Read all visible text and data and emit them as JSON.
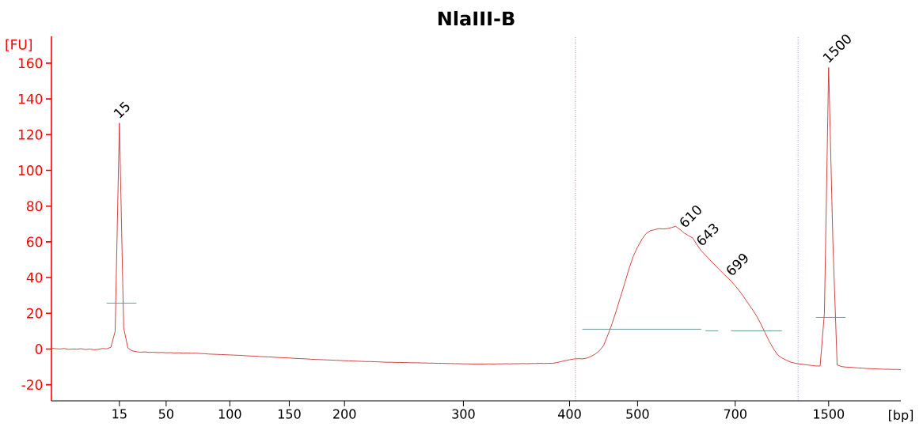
{
  "chart_data": {
    "type": "line",
    "title": "NlaIII-B",
    "xlabel": "[bp]",
    "ylabel": "[FU]",
    "ylim": [
      -29,
      175
    ],
    "yticks": [
      -20,
      0,
      20,
      40,
      60,
      80,
      100,
      120,
      140,
      160
    ],
    "grid": false,
    "marker": "none",
    "categories": [
      null,
      null,
      null,
      null,
      null,
      null,
      null,
      null,
      null,
      null,
      null,
      null,
      null,
      null,
      null,
      null,
      "15",
      null,
      null,
      null,
      null,
      null,
      null,
      null,
      null,
      null,
      null,
      "50",
      null,
      null,
      null,
      null,
      null,
      null,
      null,
      null,
      null,
      null,
      null,
      null,
      null,
      null,
      "100",
      null,
      null,
      null,
      null,
      null,
      null,
      null,
      null,
      null,
      null,
      null,
      null,
      null,
      "150",
      null,
      null,
      null,
      null,
      null,
      null,
      null,
      null,
      null,
      null,
      null,
      null,
      "200",
      null,
      null,
      null,
      null,
      null,
      null,
      null,
      null,
      null,
      null,
      null,
      null,
      null,
      null,
      null,
      null,
      null,
      null,
      null,
      null,
      null,
      null,
      null,
      null,
      null,
      null,
      null,
      "300",
      null,
      null,
      null,
      null,
      null,
      null,
      null,
      null,
      null,
      null,
      null,
      null,
      null,
      null,
      null,
      null,
      null,
      null,
      null,
      null,
      null,
      null,
      null,
      null,
      "400",
      null,
      null,
      null,
      null,
      null,
      null,
      null,
      null,
      null,
      null,
      null,
      null,
      null,
      null,
      null,
      "500",
      null,
      null,
      null,
      null,
      null,
      null,
      null,
      null,
      null,
      null,
      null,
      null,
      null,
      null,
      null,
      null,
      null,
      null,
      null,
      null,
      null,
      null,
      "700",
      null,
      null,
      null,
      null,
      null,
      null,
      null,
      null,
      null,
      null,
      null,
      null,
      null,
      null,
      null,
      null,
      null,
      null,
      null,
      null,
      null,
      "1500",
      null,
      null,
      null,
      null,
      null,
      null,
      null,
      null,
      null,
      null,
      null,
      null,
      null,
      null,
      null,
      null,
      null
    ],
    "series": [
      {
        "color": "#d03030",
        "line_style": "solid",
        "values": [
          0.4,
          0.2,
          0.0,
          0.3,
          -0.2,
          0.0,
          -0.1,
          0.2,
          -0.3,
          0.0,
          -0.4,
          -0.2,
          0.3,
          0.1,
          1.0,
          10,
          126.5,
          12,
          0.5,
          -1.0,
          -1.5,
          -1.8,
          -1.6,
          -1.9,
          -1.8,
          -2.0,
          -1.9,
          -2.1,
          -2.0,
          -2.2,
          -2.1,
          -2.3,
          -2.2,
          -2.4,
          -2.3,
          -2.5,
          -2.6,
          -2.8,
          -2.9,
          -3.0,
          -3.1,
          -3.2,
          -3.3,
          -3.4,
          -3.5,
          -3.6,
          -3.8,
          -3.9,
          -4.0,
          -4.2,
          -4.3,
          -4.4,
          -4.5,
          -4.7,
          -4.8,
          -4.9,
          -5.0,
          -5.2,
          -5.3,
          -5.4,
          -5.5,
          -5.7,
          -5.8,
          -5.9,
          -6.0,
          -6.1,
          -6.2,
          -6.3,
          -6.4,
          -6.5,
          -6.6,
          -6.7,
          -6.8,
          -6.9,
          -7.0,
          -7.0,
          -7.1,
          -7.2,
          -7.3,
          -7.4,
          -7.4,
          -7.5,
          -7.5,
          -7.6,
          -7.6,
          -7.7,
          -7.7,
          -7.8,
          -7.8,
          -7.9,
          -7.9,
          -8.0,
          -8.0,
          -8.1,
          -8.1,
          -8.2,
          -8.2,
          -8.3,
          -8.3,
          -8.4,
          -8.4,
          -8.4,
          -8.4,
          -8.3,
          -8.4,
          -8.3,
          -8.3,
          -8.2,
          -8.3,
          -8.2,
          -8.2,
          -8.1,
          -8.2,
          -8.1,
          -8.1,
          -8.0,
          -8.1,
          -8.0,
          -8.0,
          -7.6,
          -7.0,
          -6.5,
          -6.0,
          -5.6,
          -5.4,
          -5.5,
          -5.1,
          -4.2,
          -2.9,
          -1.0,
          1.9,
          7.8,
          14.2,
          21.5,
          29.2,
          37.0,
          45.0,
          51.9,
          57.0,
          61.3,
          64.6,
          66.2,
          66.8,
          67.4,
          67.2,
          67.4,
          68.0,
          68.7,
          66.9,
          64.9,
          63.5,
          62.1,
          58.4,
          55.0,
          52.5,
          50.0,
          47.6,
          45.1,
          42.7,
          40.4,
          38.1,
          35.4,
          32.5,
          29.2,
          25.7,
          22.3,
          18.6,
          14.2,
          9.3,
          4.4,
          0.2,
          -3.3,
          -5.0,
          -6.2,
          -7.3,
          -7.9,
          -8.3,
          -8.6,
          -8.9,
          -9.2,
          -9.5,
          -9.5,
          20,
          157.6,
          60,
          -8.9,
          -9.8,
          -10.1,
          -10.2,
          -10.4,
          -10.6,
          -10.7,
          -10.9,
          -11.0,
          -11.1,
          -11.2,
          -11.3,
          -11.3,
          -11.4,
          -11.4,
          -11.5
        ]
      },
      {
        "color": "#5b8f8f",
        "line_style": "solid",
        "values": [
          null,
          null,
          null,
          null,
          null,
          null,
          null,
          null,
          null,
          null,
          null,
          null,
          null,
          25.7,
          null,
          null,
          null,
          null,
          null,
          null,
          25.7,
          null,
          null,
          null,
          null,
          null,
          null,
          null,
          null,
          null,
          null,
          null,
          null,
          null,
          null,
          null,
          null,
          null,
          null,
          null,
          null,
          null,
          null,
          null,
          null,
          null,
          null,
          null,
          null,
          null,
          null,
          null,
          null,
          null,
          null,
          null,
          null,
          null,
          null,
          null,
          null,
          null,
          null,
          null,
          null,
          null,
          null,
          null,
          null,
          null,
          null,
          null,
          null,
          null,
          null,
          null,
          null,
          null,
          null,
          null,
          null,
          null,
          null,
          null,
          null,
          null,
          null,
          null,
          null,
          null,
          null,
          null,
          null,
          null,
          null,
          null,
          null,
          null,
          null,
          null,
          null,
          null,
          null,
          null,
          null,
          null,
          null,
          null,
          null,
          null,
          null,
          null,
          null,
          null,
          null,
          null,
          null,
          null,
          null,
          null,
          null,
          null,
          null,
          null,
          null,
          null,
          null,
          null,
          null,
          null,
          null,
          null,
          null,
          null,
          null,
          null,
          null,
          null,
          null,
          null,
          null,
          null,
          null,
          null,
          null,
          null,
          null,
          null,
          null,
          null,
          null,
          null,
          null,
          null,
          null,
          null,
          null,
          null,
          null,
          null,
          null,
          null,
          null,
          null,
          null,
          null,
          null,
          null,
          null,
          null,
          null,
          null,
          null,
          null,
          null,
          null,
          null,
          null,
          null,
          null,
          null,
          null,
          null,
          null,
          null,
          null,
          null,
          null,
          null,
          null,
          null,
          null,
          null,
          null,
          null,
          null,
          null,
          null,
          null,
          null,
          null
        ]
      },
      {
        "color": "#5b8f8f",
        "line_style": "solid",
        "values": [
          null,
          null,
          null,
          null,
          null,
          null,
          null,
          null,
          null,
          null,
          null,
          null,
          null,
          null,
          null,
          null,
          null,
          null,
          null,
          null,
          null,
          null,
          null,
          null,
          null,
          null,
          null,
          null,
          null,
          null,
          null,
          null,
          null,
          null,
          null,
          null,
          null,
          null,
          null,
          null,
          null,
          null,
          null,
          null,
          null,
          null,
          null,
          null,
          null,
          null,
          null,
          null,
          null,
          null,
          null,
          null,
          null,
          null,
          null,
          null,
          null,
          null,
          null,
          null,
          null,
          null,
          null,
          null,
          null,
          null,
          null,
          null,
          null,
          null,
          null,
          null,
          null,
          null,
          null,
          null,
          null,
          null,
          null,
          null,
          null,
          null,
          null,
          null,
          null,
          null,
          null,
          null,
          null,
          null,
          null,
          null,
          null,
          null,
          null,
          null,
          null,
          null,
          null,
          null,
          null,
          null,
          null,
          null,
          null,
          null,
          null,
          null,
          null,
          null,
          null,
          null,
          null,
          null,
          null,
          null,
          null,
          null,
          null,
          null,
          null,
          11.1,
          null,
          null,
          null,
          null,
          null,
          null,
          null,
          null,
          null,
          null,
          null,
          null,
          null,
          null,
          null,
          null,
          null,
          null,
          null,
          null,
          null,
          null,
          null,
          null,
          null,
          null,
          null,
          11.1,
          null,
          null,
          null,
          null,
          null,
          null,
          null,
          null,
          null,
          null,
          null,
          null,
          null,
          null,
          null,
          null,
          null,
          null,
          null,
          null,
          null,
          null,
          null,
          null,
          null,
          null,
          null,
          null,
          null,
          null,
          null,
          null,
          null,
          null,
          null,
          null,
          null,
          null,
          null,
          null,
          null,
          null,
          null,
          null,
          null,
          null,
          null
        ]
      },
      {
        "color": "#5b8f8f",
        "line_style": "solid",
        "values": [
          null,
          null,
          null,
          null,
          null,
          null,
          null,
          null,
          null,
          null,
          null,
          null,
          null,
          null,
          null,
          null,
          null,
          null,
          null,
          null,
          null,
          null,
          null,
          null,
          null,
          null,
          null,
          null,
          null,
          null,
          null,
          null,
          null,
          null,
          null,
          null,
          null,
          null,
          null,
          null,
          null,
          null,
          null,
          null,
          null,
          null,
          null,
          null,
          null,
          null,
          null,
          null,
          null,
          null,
          null,
          null,
          null,
          null,
          null,
          null,
          null,
          null,
          null,
          null,
          null,
          null,
          null,
          null,
          null,
          null,
          null,
          null,
          null,
          null,
          null,
          null,
          null,
          null,
          null,
          null,
          null,
          null,
          null,
          null,
          null,
          null,
          null,
          null,
          null,
          null,
          null,
          null,
          null,
          null,
          null,
          null,
          null,
          null,
          null,
          null,
          null,
          null,
          null,
          null,
          null,
          null,
          null,
          null,
          null,
          null,
          null,
          null,
          null,
          null,
          null,
          null,
          null,
          null,
          null,
          null,
          null,
          null,
          null,
          null,
          null,
          null,
          null,
          null,
          null,
          null,
          null,
          null,
          null,
          null,
          null,
          null,
          null,
          null,
          null,
          null,
          null,
          null,
          null,
          null,
          null,
          null,
          null,
          null,
          null,
          null,
          null,
          null,
          null,
          null,
          10.2,
          null,
          null,
          10.2,
          null,
          null,
          null,
          null,
          null,
          null,
          null,
          null,
          null,
          null,
          null,
          null,
          null,
          null,
          null,
          null,
          null,
          null,
          null,
          null,
          null,
          null,
          null,
          null,
          null,
          null,
          null,
          null,
          null,
          null,
          null,
          null,
          null,
          null,
          null,
          null,
          null,
          null,
          null,
          null,
          null,
          null,
          null
        ]
      },
      {
        "color": "#5b8f8f",
        "line_style": "solid",
        "values": [
          null,
          null,
          null,
          null,
          null,
          null,
          null,
          null,
          null,
          null,
          null,
          null,
          null,
          null,
          null,
          null,
          null,
          null,
          null,
          null,
          null,
          null,
          null,
          null,
          null,
          null,
          null,
          null,
          null,
          null,
          null,
          null,
          null,
          null,
          null,
          null,
          null,
          null,
          null,
          null,
          null,
          null,
          null,
          null,
          null,
          null,
          null,
          null,
          null,
          null,
          null,
          null,
          null,
          null,
          null,
          null,
          null,
          null,
          null,
          null,
          null,
          null,
          null,
          null,
          null,
          null,
          null,
          null,
          null,
          null,
          null,
          null,
          null,
          null,
          null,
          null,
          null,
          null,
          null,
          null,
          null,
          null,
          null,
          null,
          null,
          null,
          null,
          null,
          null,
          null,
          null,
          null,
          null,
          null,
          null,
          null,
          null,
          null,
          null,
          null,
          null,
          null,
          null,
          null,
          null,
          null,
          null,
          null,
          null,
          null,
          null,
          null,
          null,
          null,
          null,
          null,
          null,
          null,
          null,
          null,
          null,
          null,
          null,
          null,
          null,
          null,
          null,
          null,
          null,
          null,
          null,
          null,
          null,
          null,
          null,
          null,
          null,
          null,
          null,
          null,
          null,
          null,
          null,
          null,
          null,
          null,
          null,
          null,
          null,
          null,
          null,
          null,
          null,
          null,
          null,
          null,
          null,
          null,
          null,
          null,
          10.2,
          null,
          null,
          null,
          null,
          null,
          null,
          null,
          null,
          null,
          null,
          null,
          10.2,
          null,
          null,
          null,
          null,
          null,
          null,
          null,
          null,
          null,
          null,
          null,
          null,
          null,
          null,
          null,
          null,
          null,
          null,
          null,
          null,
          null,
          null,
          null,
          null,
          null,
          null,
          null,
          null
        ]
      },
      {
        "color": "#5b8f8f",
        "line_style": "solid",
        "values": [
          null,
          null,
          null,
          null,
          null,
          null,
          null,
          null,
          null,
          null,
          null,
          null,
          null,
          null,
          null,
          null,
          null,
          null,
          null,
          null,
          null,
          null,
          null,
          null,
          null,
          null,
          null,
          null,
          null,
          null,
          null,
          null,
          null,
          null,
          null,
          null,
          null,
          null,
          null,
          null,
          null,
          null,
          null,
          null,
          null,
          null,
          null,
          null,
          null,
          null,
          null,
          null,
          null,
          null,
          null,
          null,
          null,
          null,
          null,
          null,
          null,
          null,
          null,
          null,
          null,
          null,
          null,
          null,
          null,
          null,
          null,
          null,
          null,
          null,
          null,
          null,
          null,
          null,
          null,
          null,
          null,
          null,
          null,
          null,
          null,
          null,
          null,
          null,
          null,
          null,
          null,
          null,
          null,
          null,
          null,
          null,
          null,
          null,
          null,
          null,
          null,
          null,
          null,
          null,
          null,
          null,
          null,
          null,
          null,
          null,
          null,
          null,
          null,
          null,
          null,
          null,
          null,
          null,
          null,
          null,
          null,
          null,
          null,
          null,
          null,
          null,
          null,
          null,
          null,
          null,
          null,
          null,
          null,
          null,
          null,
          null,
          null,
          null,
          null,
          null,
          null,
          null,
          null,
          null,
          null,
          null,
          null,
          null,
          null,
          null,
          null,
          null,
          null,
          null,
          null,
          null,
          null,
          null,
          null,
          null,
          null,
          null,
          null,
          null,
          null,
          null,
          null,
          null,
          null,
          null,
          null,
          null,
          null,
          null,
          null,
          null,
          null,
          null,
          null,
          null,
          17.7,
          null,
          null,
          null,
          null,
          null,
          null,
          17.7,
          null,
          null,
          null,
          null,
          null,
          null,
          null,
          null,
          null,
          null,
          null,
          null,
          null
        ]
      }
    ],
    "annotations": [
      {
        "text": "15",
        "x": "15",
        "y": 126.5
      },
      "610",
      "643",
      "699",
      {
        "text": "1500",
        "x": "1500",
        "y": 157.6
      }
    ]
  }
}
